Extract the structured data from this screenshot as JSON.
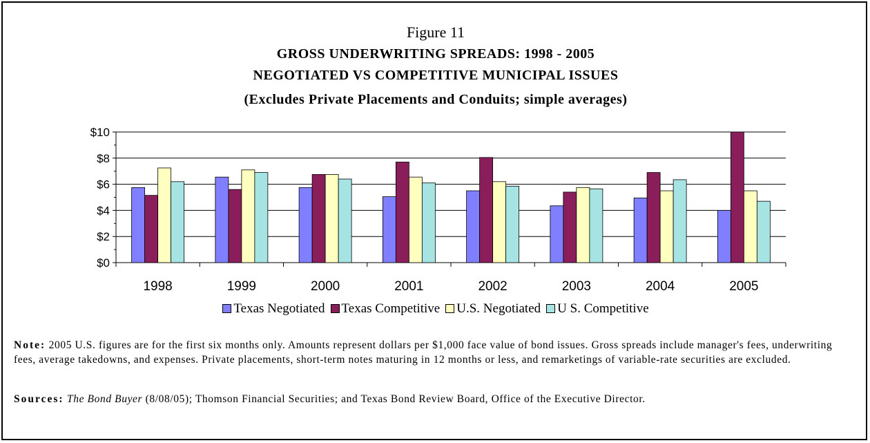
{
  "figure_label": "Figure 11",
  "chart_data": {
    "type": "bar",
    "title": "GROSS UNDERWRITING SPREADS: 1998 - 2005",
    "subtitle": "NEGOTIATED VS COMPETITIVE MUNICIPAL ISSUES",
    "subtitle2": "(Excludes Private Placements and Conduits; simple averages)",
    "xlabel": "",
    "ylabel": "",
    "ylim": [
      0,
      10
    ],
    "yticks": [
      "$0",
      "$2",
      "$4",
      "$6",
      "$8",
      "$10"
    ],
    "grid": true,
    "legend_position": "bottom",
    "categories": [
      "1998",
      "1999",
      "2000",
      "2001",
      "2002",
      "2003",
      "2004",
      "2005"
    ],
    "series": [
      {
        "name": "Texas Negotiated",
        "color": "#7F7FFF",
        "values": [
          5.75,
          6.55,
          5.75,
          5.05,
          5.5,
          4.35,
          4.95,
          4.0
        ]
      },
      {
        "name": "Texas Competitive",
        "color": "#8A1E5A",
        "values": [
          5.15,
          5.6,
          6.75,
          7.7,
          8.05,
          5.4,
          6.9,
          10.0
        ]
      },
      {
        "name": "U.S. Negotiated",
        "color": "#FFFFC0",
        "values": [
          7.25,
          7.1,
          6.75,
          6.55,
          6.2,
          5.75,
          5.5,
          5.5
        ]
      },
      {
        "name": "U S. Competitive",
        "color": "#A6E3E3",
        "values": [
          6.2,
          6.9,
          6.4,
          6.1,
          5.85,
          5.65,
          6.35,
          4.7
        ]
      }
    ]
  },
  "note": {
    "label": "Note:",
    "text": "2005 U.S. figures are for the first six months only. Amounts represent dollars per $1,000 face value of bond issues. Gross spreads include manager's fees, underwriting fees, average takedowns, and expenses. Private placements, short-term notes maturing in 12 months or less, and remarketings of variable-rate securities are excluded."
  },
  "sources": {
    "label": "Sources:",
    "italic_text": "The Bond Buyer",
    "text": "(8/08/05); Thomson Financial Securities; and Texas Bond Review Board, Office of the Executive Director."
  }
}
